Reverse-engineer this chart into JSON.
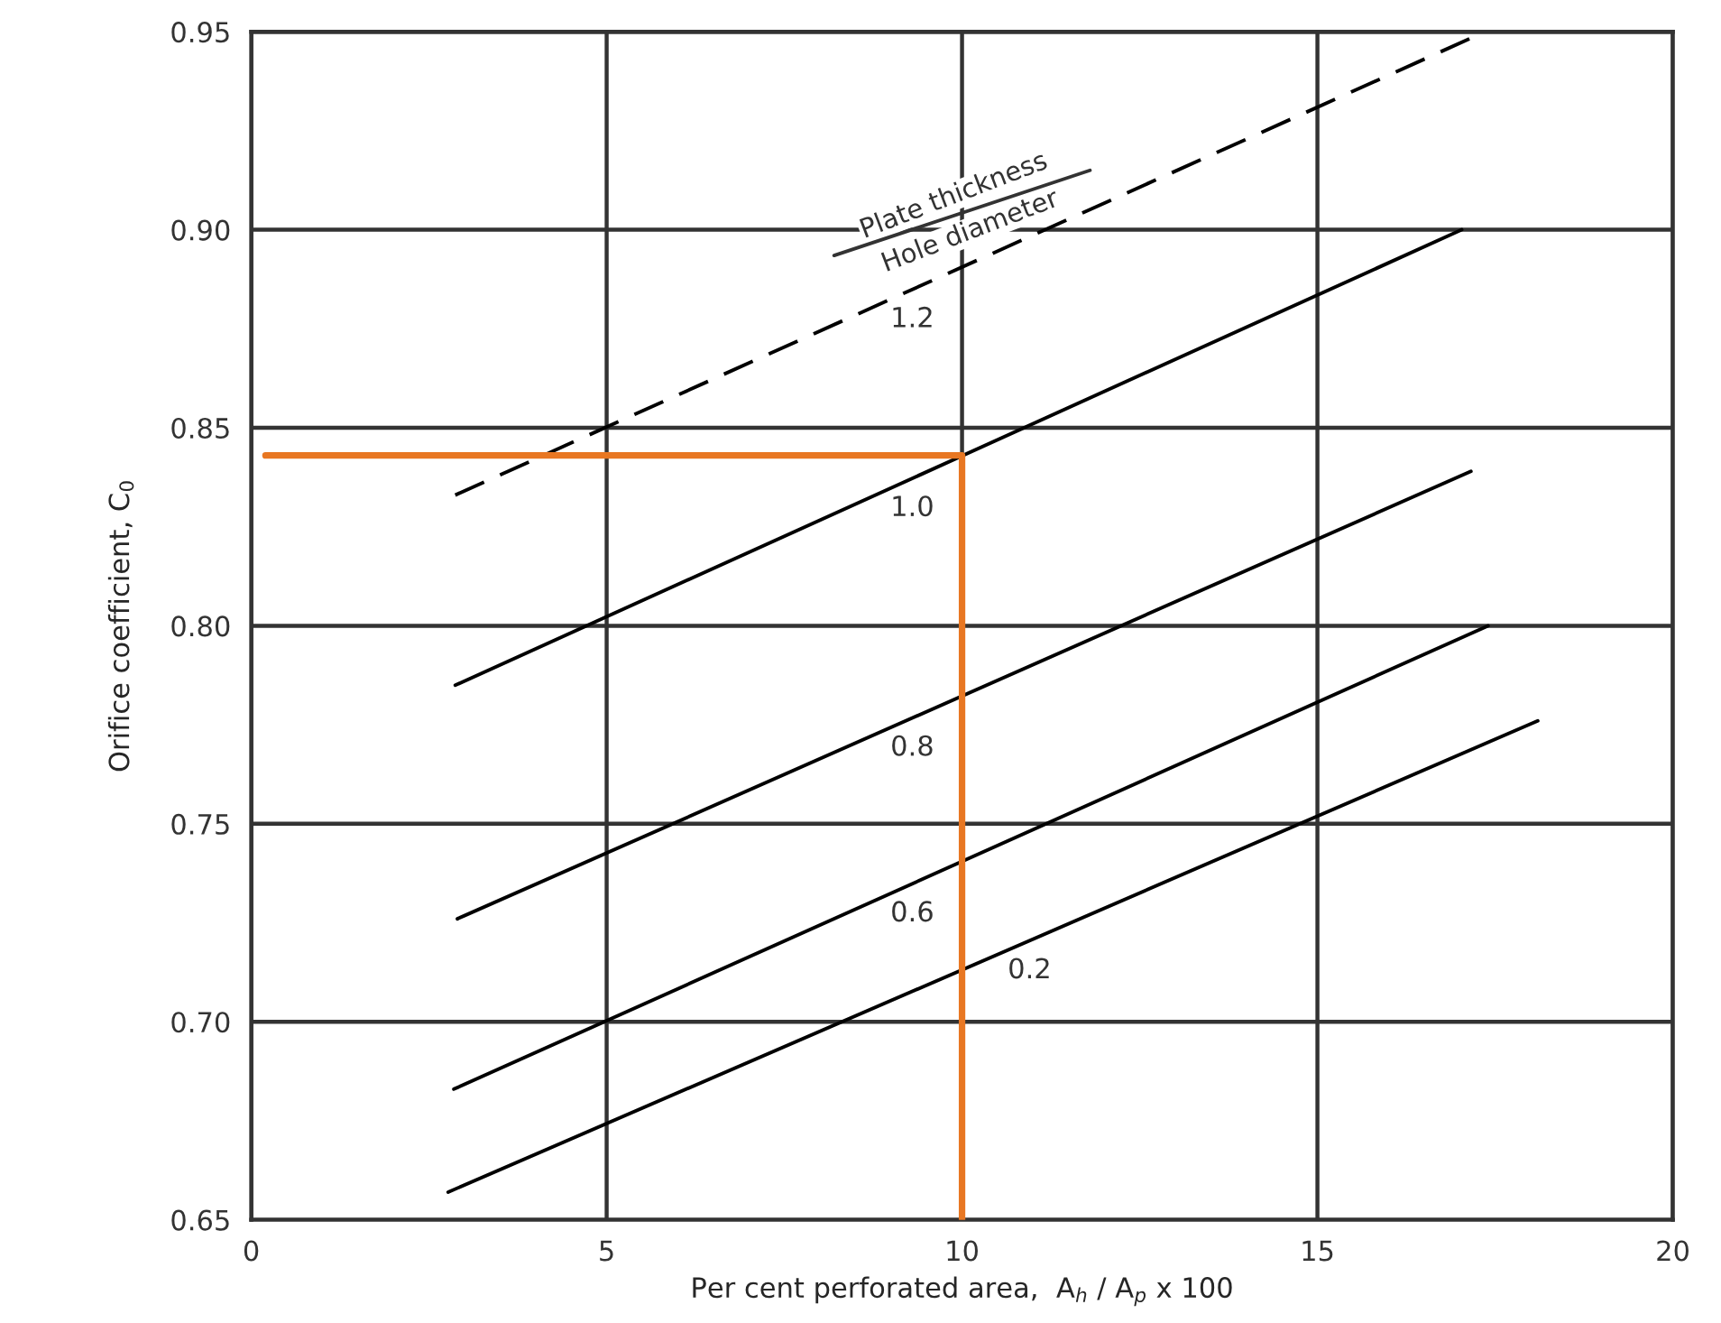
{
  "chart_data": {
    "type": "line",
    "xlabel": "Per cent perforated area,  A$_{h}$ / A$_{p}$ x 100",
    "ylabel": "Orifice coefficient, C$_{0}$",
    "xlim": [
      0,
      20
    ],
    "xticks": [
      0,
      5,
      10,
      15,
      20
    ],
    "ylim": [
      0.65,
      0.95
    ],
    "yticks": [
      {
        "value": 0.65,
        "label": "0.65"
      },
      {
        "value": 0.7,
        "label": "0.70"
      },
      {
        "value": 0.75,
        "label": "0.75"
      },
      {
        "value": 0.8,
        "label": "0.80"
      },
      {
        "value": 0.85,
        "label": "0.85"
      },
      {
        "value": 0.9,
        "label": "0.90"
      },
      {
        "value": 0.95,
        "label": "0.95"
      }
    ],
    "grid": true,
    "legend": false,
    "marker": "none",
    "series": [
      {
        "name": "1.2",
        "color": "#000000",
        "line_style": "dashed",
        "x": [
          2.87,
          17.36
        ],
        "values": [
          0.833,
          0.95
        ]
      },
      {
        "name": "1.0",
        "color": "#000000",
        "line_style": "solid",
        "x": [
          2.87,
          17.03
        ],
        "values": [
          0.785,
          0.9
        ]
      },
      {
        "name": "0.8",
        "color": "#000000",
        "line_style": "solid",
        "x": [
          2.9,
          17.16
        ],
        "values": [
          0.726,
          0.839
        ]
      },
      {
        "name": "0.6",
        "color": "#000000",
        "line_style": "solid",
        "x": [
          2.85,
          17.4
        ],
        "values": [
          0.683,
          0.8
        ]
      },
      {
        "name": "0.2",
        "color": "#000000",
        "line_style": "solid",
        "x": [
          2.77,
          18.1
        ],
        "values": [
          0.657,
          0.776
        ]
      },
      {
        "color": "#e87722",
        "line_style": "solid",
        "x": [
          0.2,
          10,
          10
        ],
        "values": [
          0.843,
          0.843,
          0.65
        ]
      }
    ],
    "annotations": [
      "Plate thickness",
      "Hole diameter"
    ]
  }
}
